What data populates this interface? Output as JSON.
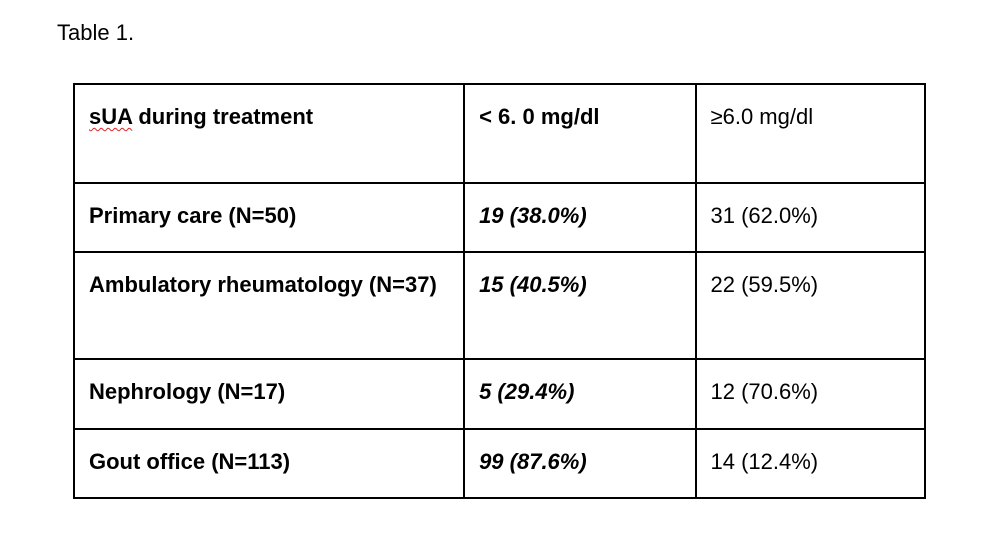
{
  "title": "Table 1.",
  "header": {
    "col1_term": "sUA",
    "col1_rest": " during treatment",
    "col2": "< 6. 0 mg/dl",
    "col3": "≥6.0 mg/dl"
  },
  "rows": [
    {
      "group": "Primary care (N=50)",
      "below": "19 (38.0%)",
      "above": "31 (62.0%)"
    },
    {
      "group": "Ambulatory rheumatology (N=37)",
      "below": "15 (40.5%)",
      "above": "22 (59.5%)"
    },
    {
      "group": "Nephrology (N=17)",
      "below": "5 (29.4%)",
      "above": "12 (70.6%)"
    },
    {
      "group": "Gout office (N=113)",
      "below": "99 (87.6%)",
      "above": "14 (12.4%)"
    }
  ],
  "colors": {
    "spellcheck_underline": "#e02020"
  }
}
